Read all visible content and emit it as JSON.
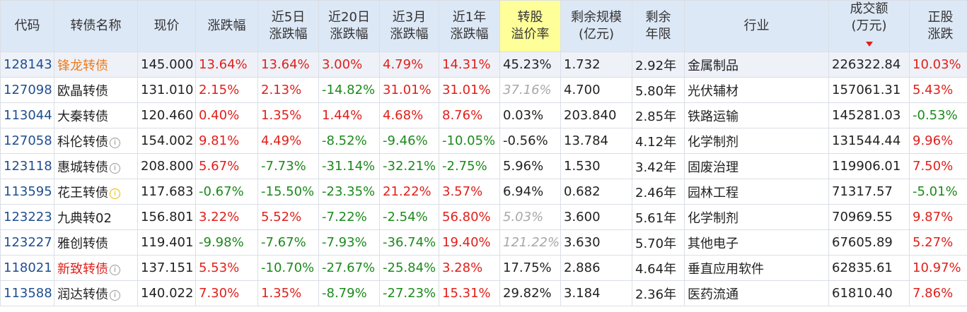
{
  "headers": {
    "code": "代码",
    "name": "转债名称",
    "price": "现价",
    "change": "涨跌幅",
    "chg5d_l1": "近5日",
    "chg5d_l2": "涨跌幅",
    "chg20d_l1": "近20日",
    "chg20d_l2": "涨跌幅",
    "chg3m_l1": "近3月",
    "chg3m_l2": "涨跌幅",
    "chg1y_l1": "近1年",
    "chg1y_l2": "涨跌幅",
    "premium_l1": "转股",
    "premium_l2": "溢价率",
    "scale_l1": "剩余规模",
    "scale_l2": "(亿元)",
    "years_l1": "剩余",
    "years_l2": "年限",
    "industry": "行业",
    "turnover_l1": "成交额",
    "turnover_l2": "(万元)",
    "stock_chg_l1": "正股",
    "stock_chg_l2": "涨跌"
  },
  "rows": [
    {
      "code": "128143",
      "name": "锋龙转债",
      "price": "145.000",
      "change": "13.64%",
      "chg5d": "13.64%",
      "chg20d": "3.00%",
      "chg3m": "4.79%",
      "chg1y": "14.31%",
      "premium": "45.23%",
      "scale": "1.732",
      "years": "2.92年",
      "industry": "金属制品",
      "turnover": "226322.84",
      "stock_chg": "10.03%"
    },
    {
      "code": "127098",
      "name": "欧晶转债",
      "price": "131.010",
      "change": "2.15%",
      "chg5d": "2.13%",
      "chg20d": "-14.82%",
      "chg3m": "31.01%",
      "chg1y": "31.01%",
      "premium": "37.16%",
      "scale": "4.700",
      "years": "5.80年",
      "industry": "光伏辅材",
      "turnover": "157061.31",
      "stock_chg": "5.43%"
    },
    {
      "code": "113044",
      "name": "大秦转债",
      "price": "120.460",
      "change": "0.40%",
      "chg5d": "1.35%",
      "chg20d": "1.44%",
      "chg3m": "4.68%",
      "chg1y": "8.76%",
      "premium": "0.03%",
      "scale": "203.840",
      "years": "2.85年",
      "industry": "铁路运输",
      "turnover": "145281.03",
      "stock_chg": "-0.53%"
    },
    {
      "code": "127058",
      "name": "科伦转债",
      "price": "154.002",
      "change": "9.81%",
      "chg5d": "4.49%",
      "chg20d": "-8.52%",
      "chg3m": "-9.46%",
      "chg1y": "-10.05%",
      "premium": "-0.56%",
      "scale": "13.784",
      "years": "4.12年",
      "industry": "化学制剂",
      "turnover": "131544.44",
      "stock_chg": "9.96%"
    },
    {
      "code": "123118",
      "name": "惠城转债",
      "price": "208.800",
      "change": "5.67%",
      "chg5d": "-7.73%",
      "chg20d": "-31.14%",
      "chg3m": "-32.21%",
      "chg1y": "-2.75%",
      "premium": "5.96%",
      "scale": "1.530",
      "years": "3.42年",
      "industry": "固废治理",
      "turnover": "119906.01",
      "stock_chg": "7.50%"
    },
    {
      "code": "113595",
      "name": "花王转债",
      "price": "117.683",
      "change": "-0.67%",
      "chg5d": "-15.50%",
      "chg20d": "-23.35%",
      "chg3m": "21.22%",
      "chg1y": "3.57%",
      "premium": "6.94%",
      "scale": "0.682",
      "years": "2.46年",
      "industry": "园林工程",
      "turnover": "71317.57",
      "stock_chg": "-5.01%"
    },
    {
      "code": "123223",
      "name": "九典转02",
      "price": "156.801",
      "change": "3.22%",
      "chg5d": "5.52%",
      "chg20d": "-7.22%",
      "chg3m": "-2.54%",
      "chg1y": "56.80%",
      "premium": "5.03%",
      "scale": "3.600",
      "years": "5.61年",
      "industry": "化学制剂",
      "turnover": "70969.55",
      "stock_chg": "9.87%"
    },
    {
      "code": "123227",
      "name": "雅创转债",
      "price": "119.401",
      "change": "-9.98%",
      "chg5d": "-7.67%",
      "chg20d": "-7.93%",
      "chg3m": "-36.74%",
      "chg1y": "19.40%",
      "premium": "121.22%",
      "scale": "3.630",
      "years": "5.70年",
      "industry": "其他电子",
      "turnover": "67605.89",
      "stock_chg": "5.27%"
    },
    {
      "code": "118021",
      "name": "新致转债",
      "price": "137.151",
      "change": "5.53%",
      "chg5d": "-10.70%",
      "chg20d": "-27.67%",
      "chg3m": "-25.84%",
      "chg1y": "3.28%",
      "premium": "17.75%",
      "scale": "2.886",
      "years": "4.64年",
      "industry": "垂直应用软件",
      "turnover": "62835.61",
      "stock_chg": "10.97%"
    },
    {
      "code": "113588",
      "name": "润达转债",
      "price": "140.022",
      "change": "7.30%",
      "chg5d": "1.35%",
      "chg20d": "-8.79%",
      "chg3m": "-27.23%",
      "chg1y": "15.31%",
      "premium": "29.82%",
      "scale": "3.184",
      "years": "2.36年",
      "industry": "医药流通",
      "turnover": "61810.40",
      "stock_chg": "7.86%"
    }
  ],
  "icons": {
    "info": "ⓘ",
    "info_yellow": "ⓘ"
  },
  "colors": {
    "up": "#e0201b",
    "down": "#1b8a1b",
    "header_bg": "#dde8f6",
    "highlight_col": "#ffff99",
    "code": "#1f4e91"
  }
}
